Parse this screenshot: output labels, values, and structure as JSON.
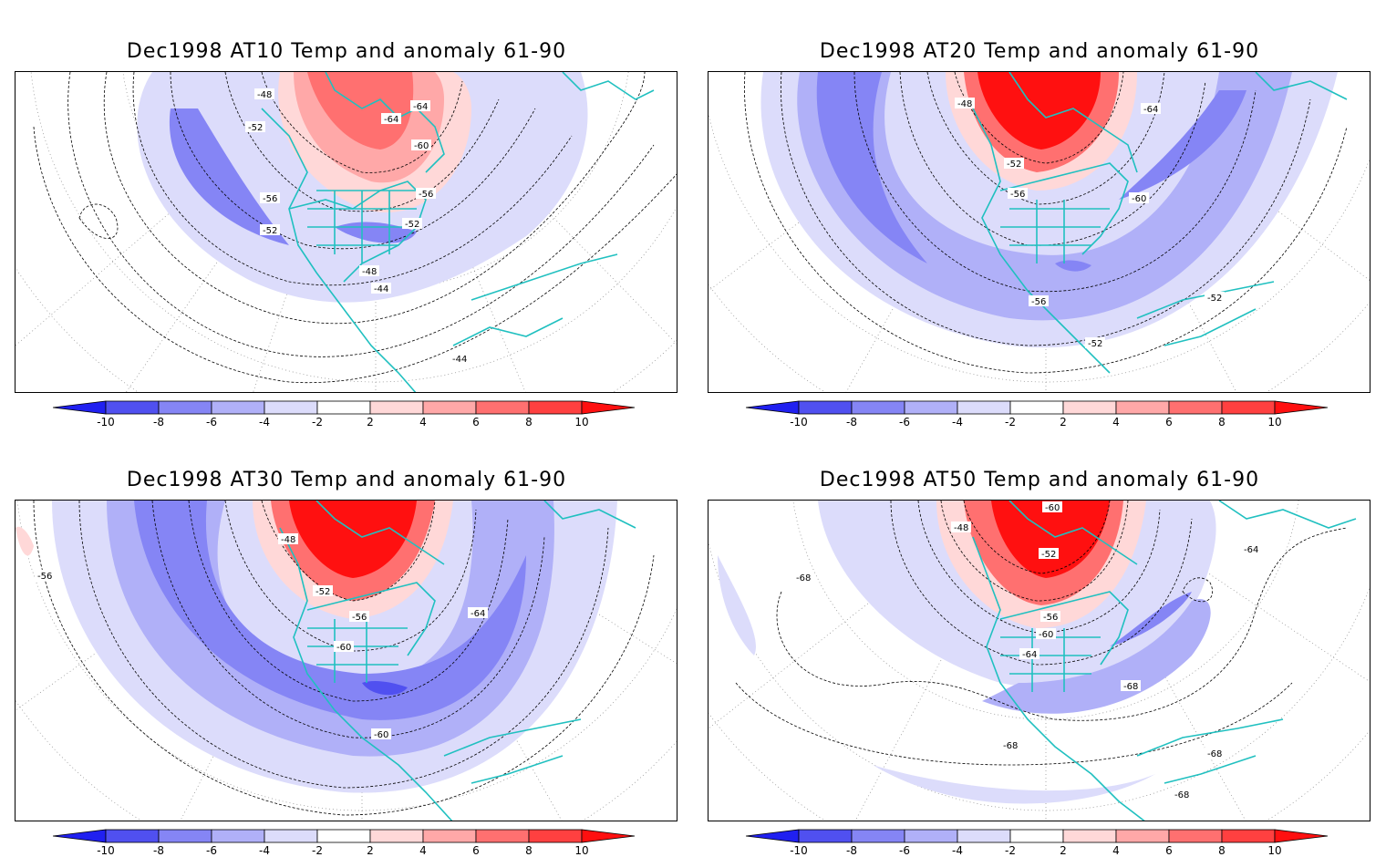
{
  "panels": [
    {
      "title": "Dec1998 AT10 Temp and anomaly 61-90",
      "contour_labels": [
        "-48",
        "-64",
        "-52",
        "-64",
        "-60",
        "-56",
        "-56",
        "-52",
        "-52",
        "-48",
        "-44",
        "-44"
      ]
    },
    {
      "title": "Dec1998 AT20 Temp and anomaly 61-90",
      "contour_labels": [
        "-48",
        "-64",
        "-52",
        "-56",
        "-60",
        "-56",
        "-52",
        "-52"
      ]
    },
    {
      "title": "Dec1998 AT30 Temp and anomaly 61-90",
      "contour_labels": [
        "-48",
        "-52",
        "-56",
        "-64",
        "-60",
        "-60",
        "-56"
      ]
    },
    {
      "title": "Dec1998 AT50 Temp and anomaly 61-90",
      "contour_labels": [
        "-60",
        "-48",
        "-52",
        "-64",
        "-68",
        "-56",
        "-60",
        "-64",
        "-68",
        "-68",
        "-68",
        "-68"
      ]
    }
  ],
  "colorbar": {
    "ticks": [
      "-10",
      "-8",
      "-6",
      "-4",
      "-2",
      "2",
      "4",
      "6",
      "8",
      "10"
    ],
    "colors": [
      "#2020f0",
      "#5050f0",
      "#8585f5",
      "#b0b0f8",
      "#dcdcfb",
      "#ffffff",
      "#ffd8d8",
      "#ffa8a8",
      "#ff7070",
      "#ff4040",
      "#ff1010"
    ]
  },
  "colors": {
    "coastline": "#20c0c0",
    "contour": "#000000",
    "graticule": "#888888"
  }
}
